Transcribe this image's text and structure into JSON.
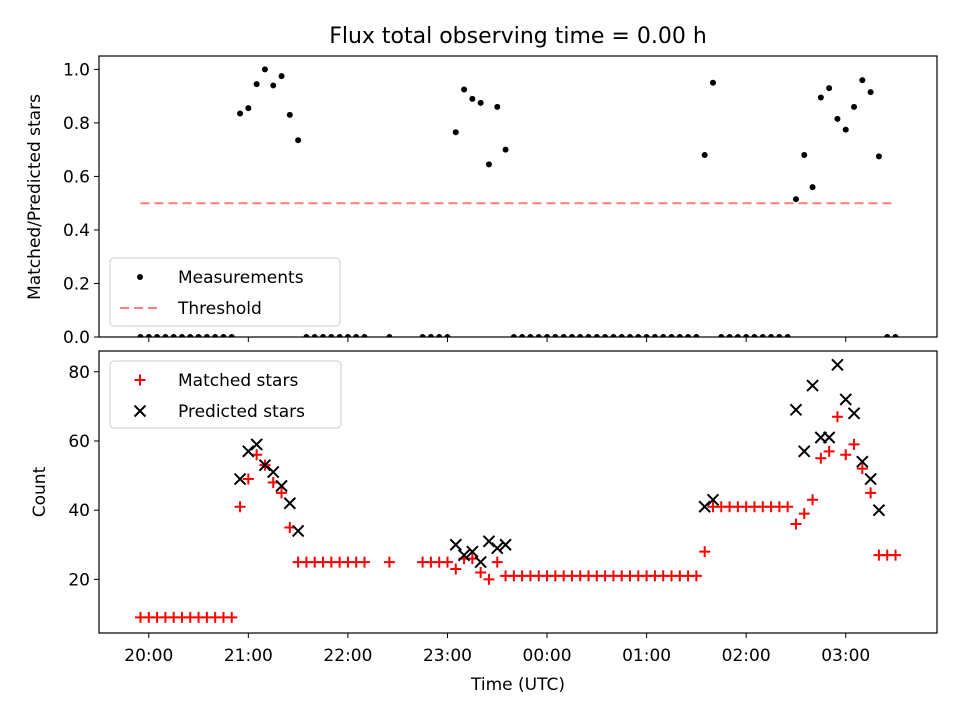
{
  "figure": {
    "title": "Flux total observing time = 0.00 h",
    "x_label": "Time (UTC)"
  },
  "chart_data": [
    {
      "type": "scatter",
      "ylabel": "Matched/Predicted stars",
      "ylim": [
        0,
        1.05
      ],
      "yticks": [
        "0.0",
        "0.2",
        "0.4",
        "0.6",
        "0.8",
        "1.0"
      ],
      "legend_position": "lower-left",
      "threshold": {
        "name": "Threshold",
        "value": 0.5,
        "x_range": [
          "19:55",
          "03:30"
        ],
        "color": "#ff7f7f"
      },
      "series": [
        {
          "name": "Measurements",
          "color": "#000000",
          "marker": "dot",
          "points": [
            [
              "19:55",
              0
            ],
            [
              "20:00",
              0
            ],
            [
              "20:05",
              0
            ],
            [
              "20:10",
              0
            ],
            [
              "20:15",
              0
            ],
            [
              "20:20",
              0
            ],
            [
              "20:25",
              0
            ],
            [
              "20:30",
              0
            ],
            [
              "20:35",
              0
            ],
            [
              "20:40",
              0
            ],
            [
              "20:45",
              0
            ],
            [
              "20:50",
              0
            ],
            [
              "20:55",
              0.835
            ],
            [
              "21:00",
              0.855
            ],
            [
              "21:05",
              0.945
            ],
            [
              "21:10",
              1.0
            ],
            [
              "21:15",
              0.94
            ],
            [
              "21:20",
              0.975
            ],
            [
              "21:25",
              0.83
            ],
            [
              "21:30",
              0.735
            ],
            [
              "21:35",
              0
            ],
            [
              "21:40",
              0
            ],
            [
              "21:45",
              0
            ],
            [
              "21:50",
              0
            ],
            [
              "21:55",
              0
            ],
            [
              "22:00",
              0
            ],
            [
              "22:05",
              0
            ],
            [
              "22:10",
              0
            ],
            [
              "22:25",
              0
            ],
            [
              "22:45",
              0
            ],
            [
              "22:50",
              0
            ],
            [
              "22:55",
              0
            ],
            [
              "23:00",
              0
            ],
            [
              "23:05",
              0.765
            ],
            [
              "23:10",
              0.925
            ],
            [
              "23:15",
              0.89
            ],
            [
              "23:20",
              0.875
            ],
            [
              "23:25",
              0.645
            ],
            [
              "23:30",
              0.86
            ],
            [
              "23:35",
              0.7
            ],
            [
              "23:40",
              0
            ],
            [
              "23:45",
              0
            ],
            [
              "23:50",
              0
            ],
            [
              "23:55",
              0
            ],
            [
              "00:00",
              0
            ],
            [
              "00:05",
              0
            ],
            [
              "00:10",
              0
            ],
            [
              "00:15",
              0
            ],
            [
              "00:20",
              0
            ],
            [
              "00:25",
              0
            ],
            [
              "00:30",
              0
            ],
            [
              "00:35",
              0
            ],
            [
              "00:40",
              0
            ],
            [
              "00:45",
              0
            ],
            [
              "00:50",
              0
            ],
            [
              "00:55",
              0
            ],
            [
              "01:00",
              0
            ],
            [
              "01:05",
              0
            ],
            [
              "01:10",
              0
            ],
            [
              "01:15",
              0
            ],
            [
              "01:20",
              0
            ],
            [
              "01:25",
              0
            ],
            [
              "01:30",
              0
            ],
            [
              "01:35",
              0.68
            ],
            [
              "01:40",
              0.95
            ],
            [
              "01:45",
              0
            ],
            [
              "01:50",
              0
            ],
            [
              "01:55",
              0
            ],
            [
              "02:00",
              0
            ],
            [
              "02:05",
              0
            ],
            [
              "02:10",
              0
            ],
            [
              "02:15",
              0
            ],
            [
              "02:20",
              0
            ],
            [
              "02:25",
              0
            ],
            [
              "02:30",
              0.515
            ],
            [
              "02:35",
              0.68
            ],
            [
              "02:40",
              0.56
            ],
            [
              "02:45",
              0.895
            ],
            [
              "02:50",
              0.93
            ],
            [
              "02:55",
              0.815
            ],
            [
              "03:00",
              0.775
            ],
            [
              "03:05",
              0.86
            ],
            [
              "03:10",
              0.96
            ],
            [
              "03:15",
              0.915
            ],
            [
              "03:20",
              0.675
            ],
            [
              "03:25",
              0
            ],
            [
              "03:30",
              0
            ]
          ]
        }
      ]
    },
    {
      "type": "scatter",
      "ylabel": "Count",
      "ylim": [
        4.5,
        86
      ],
      "yticks": [
        "20",
        "40",
        "60",
        "80"
      ],
      "legend_position": "upper-left",
      "x_domain": [
        "19:30",
        "03:55"
      ],
      "x_ticks": [
        "20:00",
        "21:00",
        "22:00",
        "23:00",
        "00:00",
        "01:00",
        "02:00",
        "03:00"
      ],
      "series": [
        {
          "name": "Matched stars",
          "color": "#ff0000",
          "marker": "plus",
          "points": [
            [
              "19:55",
              9
            ],
            [
              "20:00",
              9
            ],
            [
              "20:05",
              9
            ],
            [
              "20:10",
              9
            ],
            [
              "20:15",
              9
            ],
            [
              "20:20",
              9
            ],
            [
              "20:25",
              9
            ],
            [
              "20:30",
              9
            ],
            [
              "20:35",
              9
            ],
            [
              "20:40",
              9
            ],
            [
              "20:45",
              9
            ],
            [
              "20:50",
              9
            ],
            [
              "20:55",
              41
            ],
            [
              "21:00",
              49
            ],
            [
              "21:05",
              56
            ],
            [
              "21:10",
              53
            ],
            [
              "21:15",
              48
            ],
            [
              "21:20",
              45
            ],
            [
              "21:25",
              35
            ],
            [
              "21:30",
              25
            ],
            [
              "21:35",
              25
            ],
            [
              "21:40",
              25
            ],
            [
              "21:45",
              25
            ],
            [
              "21:50",
              25
            ],
            [
              "21:55",
              25
            ],
            [
              "22:00",
              25
            ],
            [
              "22:05",
              25
            ],
            [
              "22:10",
              25
            ],
            [
              "22:25",
              25
            ],
            [
              "22:45",
              25
            ],
            [
              "22:50",
              25
            ],
            [
              "22:55",
              25
            ],
            [
              "23:00",
              25
            ],
            [
              "23:05",
              23
            ],
            [
              "23:10",
              26
            ],
            [
              "23:15",
              26
            ],
            [
              "23:20",
              22
            ],
            [
              "23:25",
              20
            ],
            [
              "23:30",
              25
            ],
            [
              "23:35",
              21
            ],
            [
              "23:40",
              21
            ],
            [
              "23:45",
              21
            ],
            [
              "23:50",
              21
            ],
            [
              "23:55",
              21
            ],
            [
              "00:00",
              21
            ],
            [
              "00:05",
              21
            ],
            [
              "00:10",
              21
            ],
            [
              "00:15",
              21
            ],
            [
              "00:20",
              21
            ],
            [
              "00:25",
              21
            ],
            [
              "00:30",
              21
            ],
            [
              "00:35",
              21
            ],
            [
              "00:40",
              21
            ],
            [
              "00:45",
              21
            ],
            [
              "00:50",
              21
            ],
            [
              "00:55",
              21
            ],
            [
              "01:00",
              21
            ],
            [
              "01:05",
              21
            ],
            [
              "01:10",
              21
            ],
            [
              "01:15",
              21
            ],
            [
              "01:20",
              21
            ],
            [
              "01:25",
              21
            ],
            [
              "01:30",
              21
            ],
            [
              "01:35",
              28
            ],
            [
              "01:40",
              41
            ],
            [
              "01:45",
              41
            ],
            [
              "01:50",
              41
            ],
            [
              "01:55",
              41
            ],
            [
              "02:00",
              41
            ],
            [
              "02:05",
              41
            ],
            [
              "02:10",
              41
            ],
            [
              "02:15",
              41
            ],
            [
              "02:20",
              41
            ],
            [
              "02:25",
              41
            ],
            [
              "02:30",
              36
            ],
            [
              "02:35",
              39
            ],
            [
              "02:40",
              43
            ],
            [
              "02:45",
              55
            ],
            [
              "02:50",
              57
            ],
            [
              "02:55",
              67
            ],
            [
              "03:00",
              56
            ],
            [
              "03:05",
              59
            ],
            [
              "03:10",
              52
            ],
            [
              "03:15",
              45
            ],
            [
              "03:20",
              27
            ],
            [
              "03:25",
              27
            ],
            [
              "03:30",
              27
            ]
          ]
        },
        {
          "name": "Predicted stars",
          "color": "#000000",
          "marker": "x",
          "points": [
            [
              "20:55",
              49
            ],
            [
              "21:00",
              57
            ],
            [
              "21:05",
              59
            ],
            [
              "21:10",
              53
            ],
            [
              "21:15",
              51
            ],
            [
              "21:20",
              47
            ],
            [
              "21:25",
              42
            ],
            [
              "21:30",
              34
            ],
            [
              "23:05",
              30
            ],
            [
              "23:10",
              27
            ],
            [
              "23:15",
              28
            ],
            [
              "23:20",
              25
            ],
            [
              "23:25",
              31
            ],
            [
              "23:30",
              29
            ],
            [
              "23:35",
              30
            ],
            [
              "01:35",
              41
            ],
            [
              "01:40",
              43
            ],
            [
              "02:30",
              69
            ],
            [
              "02:35",
              57
            ],
            [
              "02:40",
              76
            ],
            [
              "02:45",
              61
            ],
            [
              "02:50",
              61
            ],
            [
              "02:55",
              82
            ],
            [
              "03:00",
              72
            ],
            [
              "03:05",
              68
            ],
            [
              "03:10",
              54
            ],
            [
              "03:15",
              49
            ],
            [
              "03:20",
              40
            ]
          ]
        }
      ]
    }
  ]
}
